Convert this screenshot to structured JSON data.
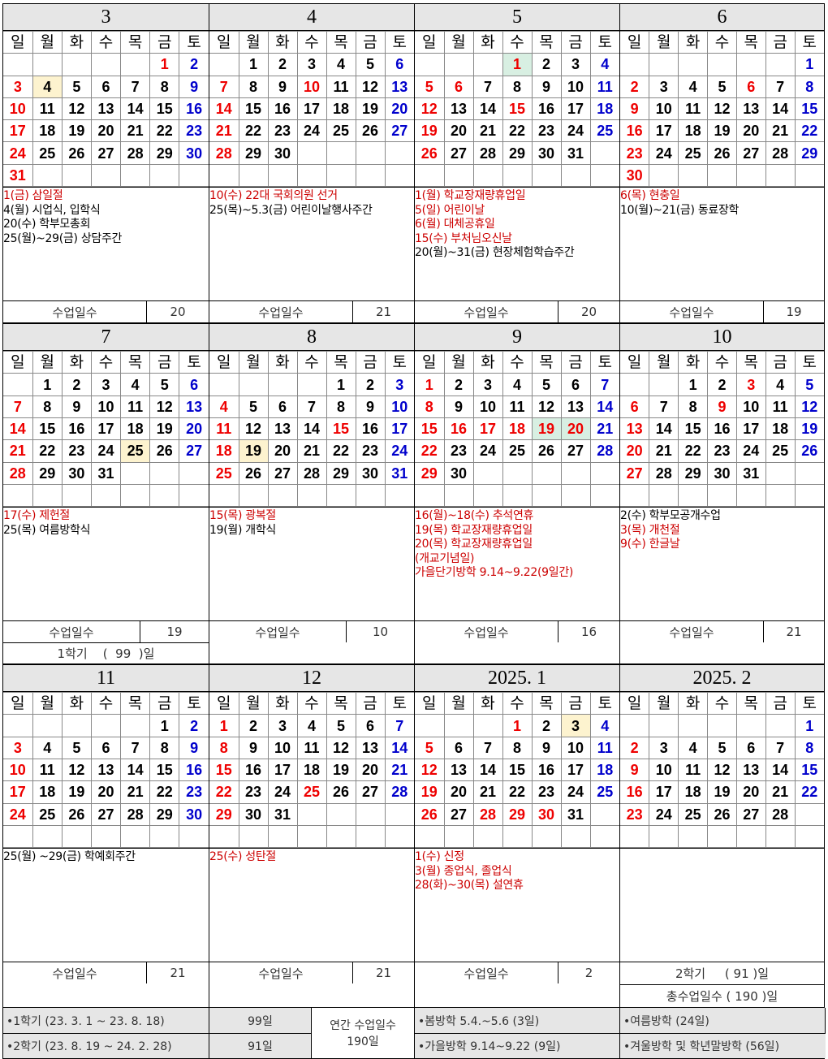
{
  "weekday_labels": [
    "일",
    "월",
    "화",
    "수",
    "목",
    "금",
    "토"
  ],
  "days_label": "수업일수",
  "months": [
    {
      "title": "3",
      "weeks": [
        [
          "",
          "",
          "",
          "",
          "",
          "1r",
          "2b"
        ],
        [
          "3r",
          "4y",
          "5",
          "6",
          "7",
          "8",
          "9b"
        ],
        [
          "10r",
          "11",
          "12",
          "13",
          "14",
          "15",
          "16b"
        ],
        [
          "17r",
          "18",
          "19",
          "20",
          "21",
          "22",
          "23b"
        ],
        [
          "24r",
          "25",
          "26",
          "27",
          "28",
          "29",
          "30b"
        ],
        [
          "31r",
          "",
          "",
          "",
          "",
          "",
          ""
        ]
      ],
      "events": [
        {
          "t": "1(금) 삼일절",
          "red": true
        },
        {
          "t": "4(월) 시업식, 입학식"
        },
        {
          "t": "20(수) 학부모총회"
        },
        {
          "t": "25(월)~29(금) 상담주간"
        }
      ],
      "days": "20"
    },
    {
      "title": "4",
      "weeks": [
        [
          "",
          "1",
          "2",
          "3",
          "4",
          "5",
          "6b"
        ],
        [
          "7r",
          "8",
          "9",
          "10r",
          "11",
          "12",
          "13b"
        ],
        [
          "14r",
          "15",
          "16",
          "17",
          "18",
          "19",
          "20b"
        ],
        [
          "21r",
          "22",
          "23",
          "24",
          "25",
          "26",
          "27b"
        ],
        [
          "28r",
          "29",
          "30",
          "",
          "",
          "",
          ""
        ],
        [
          "",
          "",
          "",
          "",
          "",
          "",
          ""
        ]
      ],
      "events": [
        {
          "t": "10(수) 22대 국회의원 선거",
          "red": true
        },
        {
          "t": "25(목)~5.3(금) 어린이날행사주간"
        }
      ],
      "days": "21"
    },
    {
      "title": "5",
      "weeks": [
        [
          "",
          "",
          "",
          "1rg",
          "2",
          "3",
          "4b"
        ],
        [
          "5r",
          "6r",
          "7",
          "8",
          "9",
          "10",
          "11b"
        ],
        [
          "12r",
          "13",
          "14",
          "15r",
          "16",
          "17",
          "18b"
        ],
        [
          "19r",
          "20",
          "21",
          "22",
          "23",
          "24",
          "25b"
        ],
        [
          "26r",
          "27",
          "28",
          "29",
          "30",
          "31",
          ""
        ],
        [
          "",
          "",
          "",
          "",
          "",
          "",
          ""
        ]
      ],
      "events": [
        {
          "t": "1(월) 학교장재량휴업일",
          "red": true
        },
        {
          "t": "5(일) 어린이날",
          "red": true
        },
        {
          "t": "6(월) 대체공휴일",
          "red": true
        },
        {
          "t": "15(수) 부처님오신날",
          "red": true
        },
        {
          "t": "20(월)~31(금) 현장체험학습주간"
        }
      ],
      "days": "20"
    },
    {
      "title": "6",
      "weeks": [
        [
          "",
          "",
          "",
          "",
          "",
          "",
          "1b"
        ],
        [
          "2r",
          "3",
          "4",
          "5",
          "6r",
          "7",
          "8b"
        ],
        [
          "9r",
          "10",
          "11",
          "12",
          "13",
          "14",
          "15b"
        ],
        [
          "16r",
          "17",
          "18",
          "19",
          "20",
          "21",
          "22b"
        ],
        [
          "23r",
          "24",
          "25",
          "26",
          "27",
          "28",
          "29b"
        ],
        [
          "30r",
          "",
          "",
          "",
          "",
          "",
          ""
        ]
      ],
      "events": [
        {
          "t": "6(목) 현충일",
          "red": true
        },
        {
          "t": "10(월)~21(금) 동료장학"
        }
      ],
      "days": "19"
    },
    {
      "title": "7",
      "weeks": [
        [
          "",
          "1",
          "2",
          "3",
          "4",
          "5",
          "6b"
        ],
        [
          "7r",
          "8",
          "9",
          "10",
          "11",
          "12",
          "13b"
        ],
        [
          "14r",
          "15",
          "16",
          "17",
          "18",
          "19",
          "20b"
        ],
        [
          "21r",
          "22",
          "23",
          "24",
          "25y",
          "26",
          "27b"
        ],
        [
          "28r",
          "29",
          "30",
          "31",
          "",
          "",
          ""
        ],
        [
          "",
          "",
          "",
          "",
          "",
          "",
          ""
        ]
      ],
      "events": [
        {
          "t": "17(수) 제헌절",
          "red": true
        },
        {
          "t": "25(목) 여름방학식"
        }
      ],
      "days": "19",
      "semester": "1학기    (  99  )일"
    },
    {
      "title": "8",
      "weeks": [
        [
          "",
          "",
          "",
          "",
          "1",
          "2",
          "3b"
        ],
        [
          "4r",
          "5",
          "6",
          "7",
          "8",
          "9",
          "10b"
        ],
        [
          "11r",
          "12",
          "13",
          "14",
          "15r",
          "16",
          "17b"
        ],
        [
          "18r",
          "19y",
          "20",
          "21",
          "22",
          "23",
          "24b"
        ],
        [
          "25r",
          "26",
          "27",
          "28",
          "29",
          "30",
          "31b"
        ],
        [
          "",
          "",
          "",
          "",
          "",
          "",
          ""
        ]
      ],
      "events": [
        {
          "t": "15(목) 광복절",
          "red": true
        },
        {
          "t": "19(월) 개학식"
        }
      ],
      "days": "10"
    },
    {
      "title": "9",
      "weeks": [
        [
          "1r",
          "2",
          "3",
          "4",
          "5",
          "6",
          "7b"
        ],
        [
          "8r",
          "9",
          "10",
          "11",
          "12",
          "13",
          "14b"
        ],
        [
          "15r",
          "16r",
          "17r",
          "18r",
          "19rg",
          "20rg",
          "21b"
        ],
        [
          "22r",
          "23",
          "24",
          "25",
          "26",
          "27",
          "28b"
        ],
        [
          "29r",
          "30",
          "",
          "",
          "",
          "",
          ""
        ],
        [
          "",
          "",
          "",
          "",
          "",
          "",
          ""
        ]
      ],
      "events": [
        {
          "t": "16(월)~18(수) 추석연휴",
          "red": true
        },
        {
          "t": "19(목) 학교장재량휴업일",
          "red": true
        },
        {
          "t": "20(목) 학교장재량휴업일",
          "red": true
        },
        {
          "t": "       (개교기념일)",
          "red": true
        },
        {
          "t": "가을단기방학 9.14~9.22(9일간)",
          "red": true
        }
      ],
      "days": "16"
    },
    {
      "title": "10",
      "weeks": [
        [
          "",
          "",
          "1",
          "2",
          "3r",
          "4",
          "5b"
        ],
        [
          "6r",
          "7",
          "8",
          "9r",
          "10",
          "11",
          "12b"
        ],
        [
          "13r",
          "14",
          "15",
          "16",
          "17",
          "18",
          "19b"
        ],
        [
          "20r",
          "21",
          "22",
          "23",
          "24",
          "25",
          "26b"
        ],
        [
          "27r",
          "28",
          "29",
          "30",
          "31",
          "",
          ""
        ],
        [
          "",
          "",
          "",
          "",
          "",
          "",
          ""
        ]
      ],
      "events": [
        {
          "t": "2(수) 학부모공개수업"
        },
        {
          "t": "3(목) 개천절",
          "red": true
        },
        {
          "t": "9(수) 한글날",
          "red": true
        }
      ],
      "days": "21"
    },
    {
      "title": "11",
      "weeks": [
        [
          "",
          "",
          "",
          "",
          "",
          "1",
          "2b"
        ],
        [
          "3r",
          "4",
          "5",
          "6",
          "7",
          "8",
          "9b"
        ],
        [
          "10r",
          "11",
          "12",
          "13",
          "14",
          "15",
          "16b"
        ],
        [
          "17r",
          "18",
          "19",
          "20",
          "21",
          "22",
          "23b"
        ],
        [
          "24r",
          "25",
          "26",
          "27",
          "28",
          "29",
          "30b"
        ],
        [
          "",
          "",
          "",
          "",
          "",
          "",
          ""
        ]
      ],
      "events": [
        {
          "t": "25(월) ~29(금) 학예회주간"
        }
      ],
      "days": "21"
    },
    {
      "title": "12",
      "weeks": [
        [
          "1r",
          "2",
          "3",
          "4",
          "5",
          "6",
          "7b"
        ],
        [
          "8r",
          "9",
          "10",
          "11",
          "12",
          "13",
          "14b"
        ],
        [
          "15r",
          "16",
          "17",
          "18",
          "19",
          "20",
          "21b"
        ],
        [
          "22r",
          "23",
          "24",
          "25r",
          "26",
          "27",
          "28b"
        ],
        [
          "29r",
          "30",
          "31",
          "",
          "",
          "",
          ""
        ],
        [
          "",
          "",
          "",
          "",
          "",
          "",
          ""
        ]
      ],
      "events": [
        {
          "t": "25(수) 성탄절",
          "red": true
        }
      ],
      "days": "21"
    },
    {
      "title": "2025. 1",
      "weeks": [
        [
          "",
          "",
          "",
          "1r",
          "2",
          "3y",
          "4b"
        ],
        [
          "5r",
          "6",
          "7",
          "8",
          "9",
          "10",
          "11b"
        ],
        [
          "12r",
          "13",
          "14",
          "15",
          "16",
          "17",
          "18b"
        ],
        [
          "19r",
          "20",
          "21",
          "22",
          "23",
          "24",
          "25b"
        ],
        [
          "26r",
          "27",
          "28r",
          "29r",
          "30r",
          "31",
          ""
        ],
        [
          "",
          "",
          "",
          "",
          "",
          "",
          ""
        ]
      ],
      "events": [
        {
          "t": "1(수) 신정",
          "red": true
        },
        {
          "t": "3(월) 종업식, 졸업식",
          "red": true
        },
        {
          "t": "28(화)~30(목) 설연휴",
          "red": true
        }
      ],
      "days": "2"
    },
    {
      "title": "2025. 2",
      "weeks": [
        [
          "",
          "",
          "",
          "",
          "",
          "",
          "1b"
        ],
        [
          "2r",
          "3",
          "4",
          "5",
          "6",
          "7",
          "8b"
        ],
        [
          "9r",
          "10",
          "11",
          "12",
          "13",
          "14",
          "15b"
        ],
        [
          "16r",
          "17",
          "18",
          "19",
          "20",
          "21",
          "22b"
        ],
        [
          "23r",
          "24",
          "25",
          "26",
          "27",
          "28",
          ""
        ],
        [
          "",
          "",
          "",
          "",
          "",
          "",
          ""
        ]
      ],
      "events": [],
      "sem2": "2학기     ( 91 )일",
      "total": "총수업일수 ( 190 )일"
    }
  ],
  "footer": {
    "s1_label": "•1학기  (23. 3. 1 ~ 23. 8. 18)",
    "s1_days": "99일",
    "s2_label": "•2학기  (23. 8. 19 ~ 24. 2. 28)",
    "s2_days": "91일",
    "annual_label": "연간 수업일수",
    "annual_days": "190일",
    "spring": "•봄방학 5.4.~5.6 (3일)",
    "autumn": "•가을방학 9.14~9.22 (9일)",
    "summer": "•여름방학 (24일)",
    "winter": "•겨울방학 및 학년말방학 (56일)"
  }
}
